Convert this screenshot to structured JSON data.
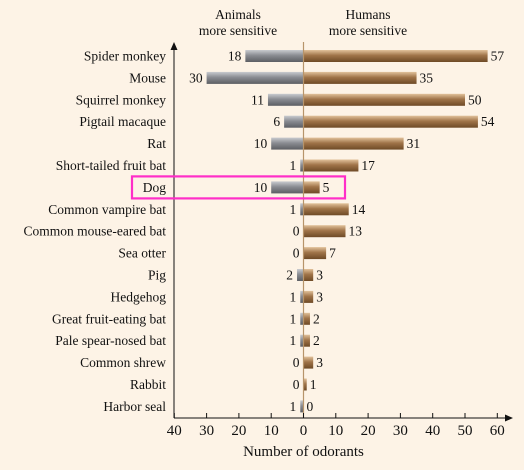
{
  "colors": {
    "background": "#fdf3e6",
    "animals_bar": "#8a8c92",
    "humans_bar": "#8c6236",
    "highlight_box": "#ff2ec8"
  },
  "chart_data": {
    "type": "bar",
    "orientation": "horizontal-diverging",
    "header_left": [
      "Animals",
      "more sensitive"
    ],
    "header_right": [
      "Humans",
      "more sensitive"
    ],
    "categories": [
      "Spider monkey",
      "Mouse",
      "Squirrel monkey",
      "Pigtail macaque",
      "Rat",
      "Short-tailed fruit bat",
      "Dog",
      "Common vampire bat",
      "Common mouse-eared bat",
      "Sea otter",
      "Pig",
      "Hedgehog",
      "Great fruit-eating bat",
      "Pale spear-nosed bat",
      "Common shrew",
      "Rabbit",
      "Harbor seal"
    ],
    "series": [
      {
        "name": "Animals more sensitive",
        "side": "left",
        "values": [
          18,
          30,
          11,
          6,
          10,
          1,
          10,
          1,
          0,
          0,
          2,
          1,
          1,
          1,
          0,
          0,
          1
        ]
      },
      {
        "name": "Humans more sensitive",
        "side": "right",
        "values": [
          57,
          35,
          50,
          54,
          31,
          17,
          5,
          14,
          13,
          7,
          3,
          3,
          2,
          2,
          3,
          1,
          0
        ]
      }
    ],
    "xlabel": "Number of odorants",
    "xlim": [
      -40,
      60
    ],
    "xticks": [
      -40,
      -30,
      -20,
      -10,
      0,
      10,
      20,
      30,
      40,
      50,
      60
    ],
    "xtick_labels": [
      "40",
      "30",
      "20",
      "10",
      "0",
      "10",
      "20",
      "30",
      "40",
      "50",
      "60"
    ],
    "highlight": "Dog",
    "grid": false
  }
}
